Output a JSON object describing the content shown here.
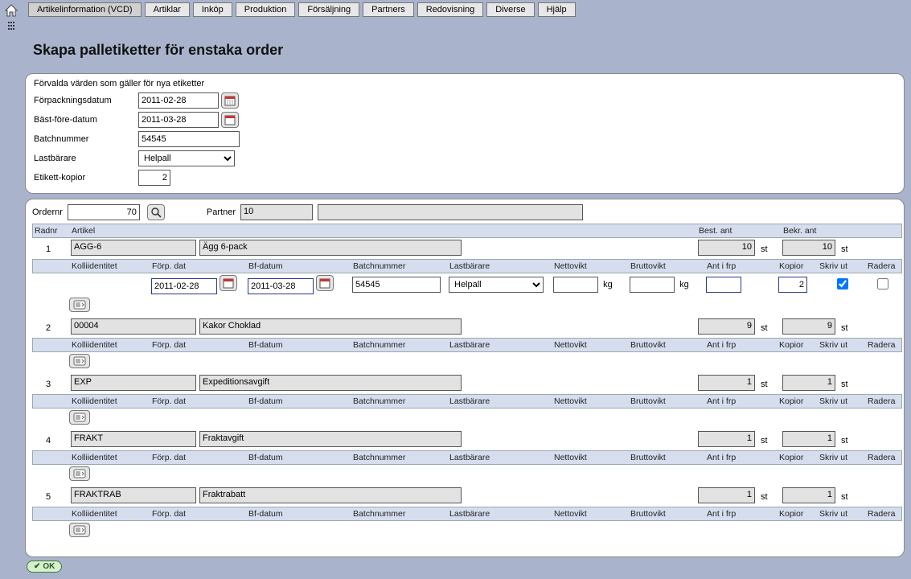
{
  "tabs": [
    "Artikelinformation (VCD)",
    "Artiklar",
    "Inköp",
    "Produktion",
    "Försäljning",
    "Partners",
    "Redovisning",
    "Diverse",
    "Hjälp"
  ],
  "active_tab_index": 0,
  "page_title": "Skapa palletiketter för enstaka order",
  "defaults": {
    "section_title": "Förvalda värden som gäller för nya etiketter",
    "labels": {
      "pack_date": "Förpackningsdatum",
      "best_before": "Bäst-före-datum",
      "batch": "Batchnummer",
      "carrier": "Lastbärare",
      "copies": "Etikett-kopior"
    },
    "values": {
      "pack_date": "2011-02-28",
      "best_before": "2011-03-28",
      "batch": "54545",
      "carrier_selected": "Helpall",
      "copies": "2"
    }
  },
  "order_head": {
    "ordernr_label": "Ordernr",
    "ordernr": "70",
    "partner_label": "Partner",
    "partner1": "10",
    "partner2": ""
  },
  "grid_head": {
    "radnr": "Radnr",
    "artikel": "Artikel",
    "best_ant": "Best. ant",
    "bekr_ant": "Bekr. ant"
  },
  "sub_head": {
    "kolli": "Kolliidentitet",
    "forp": "Förp. dat",
    "bf": "Bf-datum",
    "batch": "Batchnummer",
    "last": "Lastbärare",
    "netto": "Nettovikt",
    "brutto": "Bruttovikt",
    "ant": "Ant i frp",
    "kopior": "Kopior",
    "skriv": "Skriv ut",
    "radera": "Radera"
  },
  "unit_st": "st",
  "unit_kg": "kg",
  "rows": [
    {
      "n": "1",
      "art_code": "AGG-6",
      "art_desc": "Ägg 6-pack",
      "best": "10",
      "bekr": "10",
      "detail": {
        "forp": "2011-02-28",
        "bf": "2011-03-28",
        "batch": "54545",
        "last": "Helpall",
        "netto": "",
        "brutto": "",
        "ant": "",
        "kopior": "2",
        "skriv": true,
        "radera": false,
        "show_inputs": true
      }
    },
    {
      "n": "2",
      "art_code": "00004",
      "art_desc": "Kakor Choklad",
      "best": "9",
      "bekr": "9",
      "detail": {
        "show_inputs": false
      }
    },
    {
      "n": "3",
      "art_code": "EXP",
      "art_desc": "Expeditionsavgift",
      "best": "1",
      "bekr": "1",
      "detail": {
        "show_inputs": false
      }
    },
    {
      "n": "4",
      "art_code": "FRAKT",
      "art_desc": "Fraktavgift",
      "best": "1",
      "bekr": "1",
      "detail": {
        "show_inputs": false
      }
    },
    {
      "n": "5",
      "art_code": "FRAKTRAB",
      "art_desc": "Fraktrabatt",
      "best": "1",
      "bekr": "1",
      "detail": {
        "show_inputs": false
      }
    }
  ],
  "ok_label": "OK",
  "colors": {
    "page_bg": "#a9b4cc",
    "panel_bg": "#ffffff",
    "subhead_bg": "#d6ddee",
    "readonly_bg": "#e2e2e2"
  }
}
